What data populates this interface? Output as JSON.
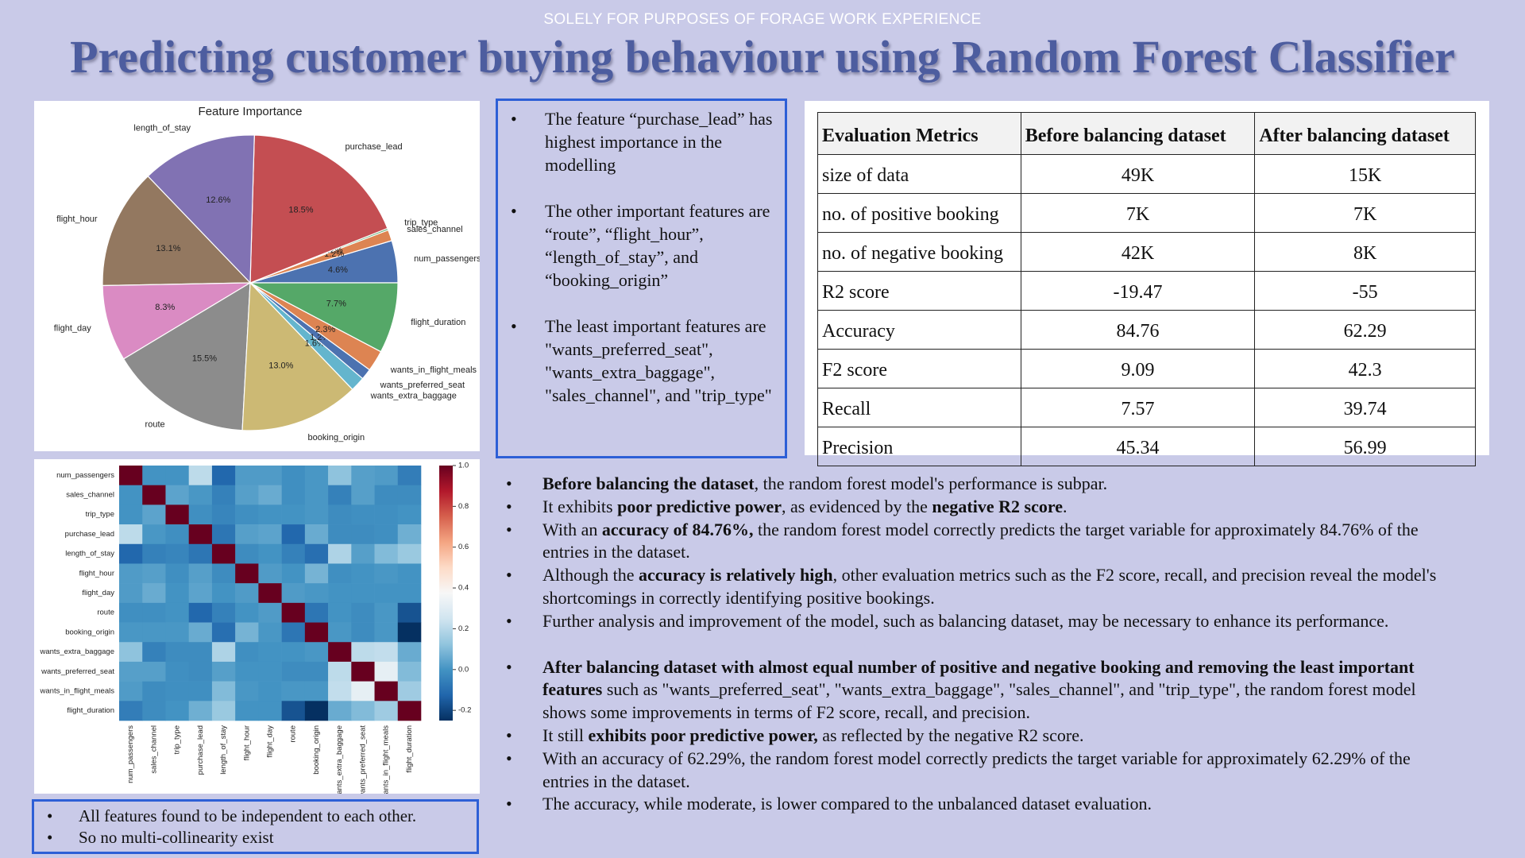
{
  "header": {
    "notice": "SOLELY FOR PURPOSES OF FORAGE WORK EXPERIENCE",
    "title": "Predicting customer buying behaviour using Random Forest Classifier"
  },
  "chart_data": [
    {
      "type": "pie",
      "title": "Feature Importance",
      "categories": [
        "num_passengers",
        "sales_channel",
        "trip_type",
        "purchase_lead",
        "length_of_stay",
        "flight_hour",
        "flight_day",
        "route",
        "booking_origin",
        "wants_extra_baggage",
        "wants_preferred_seat",
        "wants_in_flight_meals",
        "flight_duration"
      ],
      "values": [
        4.6,
        1.2,
        0.2,
        18.5,
        12.6,
        13.1,
        8.3,
        15.5,
        13.0,
        1.6,
        1.2,
        2.3,
        7.7
      ],
      "value_labels": [
        "4.6%",
        "1.2%",
        "0.2%",
        "18.5%",
        "12.6%",
        "13.1%",
        "8.3%",
        "15.5%",
        "13.0%",
        "1.6%",
        "1.2%",
        "2.3%",
        "7.7%"
      ],
      "colors": [
        "#4c72b0",
        "#dd8452",
        "#55a868",
        "#c44e52",
        "#8172b3",
        "#937860",
        "#da8bc3",
        "#8c8c8c",
        "#ccb974",
        "#64b5cd",
        "#4c72b0",
        "#dd8452",
        "#55a868"
      ]
    },
    {
      "type": "heatmap",
      "categories": [
        "num_passengers",
        "sales_channel",
        "trip_type",
        "purchase_lead",
        "length_of_stay",
        "flight_hour",
        "flight_day",
        "route",
        "booking_origin",
        "wants_extra_baggage",
        "wants_preferred_seat",
        "wants_in_flight_meals",
        "flight_duration"
      ],
      "values": [
        [
          1,
          0.0,
          0.0,
          0.21,
          -0.12,
          0.02,
          0.02,
          -0.01,
          0.01,
          0.12,
          0.03,
          0.02,
          -0.06
        ],
        [
          0.0,
          1,
          0.04,
          0.01,
          -0.05,
          0.03,
          0.06,
          -0.01,
          0.01,
          -0.05,
          0.03,
          -0.02,
          -0.02
        ],
        [
          0.0,
          0.04,
          1,
          -0.01,
          -0.04,
          -0.01,
          0.0,
          0.0,
          0.01,
          -0.02,
          -0.01,
          -0.01,
          0.0
        ],
        [
          0.21,
          0.01,
          -0.01,
          1,
          -0.08,
          0.03,
          0.04,
          -0.12,
          0.06,
          -0.02,
          -0.02,
          -0.01,
          0.07
        ],
        [
          -0.12,
          -0.05,
          -0.04,
          -0.08,
          1,
          -0.02,
          0.0,
          -0.05,
          -0.1,
          0.18,
          0.03,
          0.1,
          0.14
        ],
        [
          0.02,
          0.03,
          -0.01,
          0.03,
          -0.02,
          1,
          0.02,
          0.0,
          0.08,
          -0.01,
          0.0,
          0.01,
          0.0
        ],
        [
          0.02,
          0.06,
          0.0,
          0.04,
          0.0,
          0.02,
          1,
          0.02,
          0.01,
          0.0,
          0.0,
          0.0,
          0.0
        ],
        [
          -0.01,
          -0.01,
          0.0,
          -0.12,
          -0.05,
          0.0,
          0.02,
          1,
          -0.08,
          0.0,
          -0.02,
          0.01,
          -0.17
        ],
        [
          0.01,
          0.01,
          0.01,
          0.06,
          -0.1,
          0.08,
          0.01,
          -0.08,
          1,
          0.01,
          -0.02,
          0.01,
          -0.25
        ],
        [
          0.12,
          -0.05,
          -0.02,
          -0.02,
          0.18,
          -0.01,
          0.0,
          0.0,
          0.01,
          1,
          0.21,
          0.22,
          0.06
        ],
        [
          0.03,
          0.03,
          -0.01,
          -0.02,
          0.03,
          0.0,
          0.0,
          -0.02,
          -0.02,
          0.21,
          1,
          0.32,
          0.1
        ],
        [
          0.02,
          -0.02,
          -0.01,
          -0.01,
          0.1,
          0.01,
          0.0,
          0.01,
          0.01,
          0.22,
          0.32,
          1,
          0.15
        ],
        [
          -0.06,
          -0.02,
          0.0,
          0.07,
          0.14,
          0.0,
          0.0,
          -0.17,
          -0.25,
          0.06,
          0.1,
          0.15,
          1
        ]
      ],
      "vlim": [
        -0.25,
        1.0
      ],
      "colorbar_ticks": [
        {
          "value": 1,
          "label": "1.0"
        },
        0.8,
        0.6,
        0.4,
        0.2,
        {
          "value": 0,
          "label": "0.0"
        },
        -0.2
      ]
    }
  ],
  "importance_notes": [
    "The feature “purchase_lead” has highest importance in the modelling",
    "The other important features are “route”, “flight_hour”, “length_of_stay”,  and “booking_origin”",
    "The least important features are \"wants_preferred_seat\", \"wants_extra_baggage\", \"sales_channel\", and \"trip_type\""
  ],
  "correlation_notes": [
    "All features found to be independent to each other.",
    "So no multi-collinearity exist"
  ],
  "table": {
    "header": [
      "Evaluation Metrics",
      "Before balancing dataset",
      "After balancing dataset"
    ],
    "rows": [
      [
        "size of data",
        "49K",
        "15K"
      ],
      [
        "no. of positive booking",
        "7K",
        "7K"
      ],
      [
        "no. of negative booking",
        "42K",
        "8K"
      ],
      [
        "R2 score",
        "-19.47",
        "-55"
      ],
      [
        "Accuracy",
        "84.76",
        "62.29"
      ],
      [
        "F2 score",
        "9.09",
        "42.3"
      ],
      [
        "Recall",
        "7.57",
        "39.74"
      ],
      [
        "Precision",
        "45.34",
        "56.99"
      ]
    ]
  },
  "analysis": {
    "before": [
      [
        {
          "text": "Before balancing the dataset",
          "bold": true
        },
        {
          "text": ", the random forest model's performance is subpar."
        }
      ],
      [
        {
          "text": "It exhibits "
        },
        {
          "text": "poor predictive power",
          "bold": true
        },
        {
          "text": ", as evidenced by the "
        },
        {
          "text": "negative R2 score",
          "bold": true
        },
        {
          "text": "."
        }
      ],
      [
        {
          "text": "With an "
        },
        {
          "text": "accuracy of 84.76%,",
          "bold": true
        },
        {
          "text": " the random forest model correctly predicts the target variable for approximately 84.76% of the entries in the dataset."
        }
      ],
      [
        {
          "text": "Although the "
        },
        {
          "text": "accuracy is relatively high",
          "bold": true
        },
        {
          "text": ", other evaluation metrics such as the F2 score, recall, and precision reveal the model's shortcomings in correctly identifying positive bookings."
        }
      ],
      [
        {
          "text": "Further analysis and improvement of the model, such as balancing dataset, may be necessary to enhance its performance."
        }
      ]
    ],
    "after": [
      [
        {
          "text": "After balancing dataset with almost equal number of positive and negative booking and removing the least important features",
          "bold": true
        },
        {
          "text": " such as \"wants_preferred_seat\", \"wants_extra_baggage\", \"sales_channel\", and \"trip_type\", the random forest model shows some improvements in terms of F2 score, recall, and precision."
        }
      ],
      [
        {
          "text": "It still "
        },
        {
          "text": "exhibits poor predictive power,",
          "bold": true
        },
        {
          "text": " as reflected by the negative R2 score."
        }
      ],
      [
        {
          "text": "With an accuracy of 62.29%, the random forest model correctly predicts the target variable for approximately 62.29% of the entries in the dataset."
        }
      ],
      [
        {
          "text": "The accuracy, while moderate, is lower compared to the unbalanced dataset evaluation."
        }
      ]
    ]
  }
}
